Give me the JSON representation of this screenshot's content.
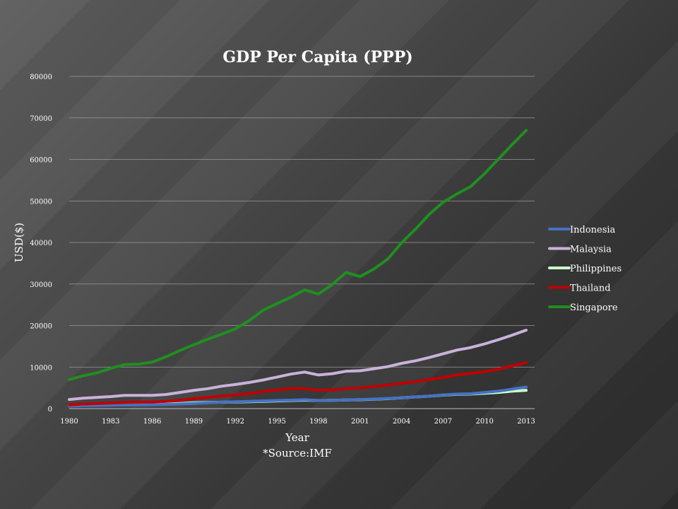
{
  "chart_data": {
    "type": "line",
    "title": "GDP Per Capita (PPP)",
    "xlabel": "Year",
    "ylabel": "USD($)",
    "source": "*Source:IMF",
    "x": [
      1980,
      1981,
      1982,
      1983,
      1984,
      1985,
      1986,
      1987,
      1988,
      1989,
      1990,
      1991,
      1992,
      1993,
      1994,
      1995,
      1996,
      1997,
      1998,
      1999,
      2000,
      2001,
      2002,
      2003,
      2004,
      2005,
      2006,
      2007,
      2008,
      2009,
      2010,
      2011,
      2012,
      2013
    ],
    "x_ticks": [
      "1980",
      "1983",
      "1986",
      "1989",
      "1992",
      "1995",
      "1998",
      "2001",
      "2004",
      "2007",
      "2010",
      "2013"
    ],
    "y_ticks": [
      "0",
      "10000",
      "20000",
      "30000",
      "40000",
      "50000",
      "60000",
      "70000",
      "80000"
    ],
    "ylim": [
      0,
      80000
    ],
    "grid": true,
    "legend_position": "right",
    "series": [
      {
        "name": "Indonesia",
        "color": "#4472c4",
        "values": [
          600,
          700,
          750,
          800,
          850,
          900,
          950,
          1000,
          1100,
          1250,
          1400,
          1550,
          1650,
          1750,
          1850,
          1950,
          2050,
          2150,
          1950,
          2000,
          2100,
          2200,
          2300,
          2450,
          2600,
          2800,
          3000,
          3300,
          3500,
          3600,
          3900,
          4200,
          4700,
          5200
        ]
      },
      {
        "name": "Malaysia",
        "color": "#c9b3d9",
        "values": [
          2200,
          2500,
          2700,
          2900,
          3200,
          3200,
          3200,
          3400,
          3900,
          4400,
          4800,
          5400,
          5800,
          6300,
          6900,
          7600,
          8300,
          8800,
          8100,
          8400,
          9000,
          9100,
          9600,
          10100,
          10900,
          11500,
          12300,
          13200,
          14100,
          14700,
          15600,
          16600,
          17700,
          18900
        ]
      },
      {
        "name": "Philippines",
        "color": "#ccffcc",
        "values": [
          800,
          900,
          1000,
          1050,
          1000,
          1000,
          1050,
          1100,
          1250,
          1400,
          1500,
          1550,
          1600,
          1650,
          1750,
          1850,
          1950,
          2050,
          1950,
          2000,
          2100,
          2150,
          2250,
          2400,
          2600,
          2800,
          3000,
          3250,
          3450,
          3500,
          3700,
          3900,
          4200,
          4400
        ]
      },
      {
        "name": "Thailand",
        "color": "#c00000",
        "values": [
          900,
          1100,
          1250,
          1350,
          1500,
          1550,
          1600,
          1750,
          2000,
          2400,
          2700,
          3000,
          3300,
          3600,
          4100,
          4500,
          4800,
          4800,
          4400,
          4500,
          4800,
          5000,
          5300,
          5700,
          6100,
          6500,
          7000,
          7500,
          8100,
          8500,
          8900,
          9500,
          10300,
          11100
        ]
      },
      {
        "name": "Singapore",
        "color": "#1f8f1f",
        "values": [
          7000,
          7900,
          8600,
          9700,
          10600,
          10700,
          11200,
          12500,
          14000,
          15400,
          16700,
          17900,
          19200,
          21200,
          23700,
          25300,
          26800,
          28600,
          27600,
          29900,
          32800,
          31800,
          33600,
          36000,
          39900,
          43200,
          46800,
          49700,
          51700,
          53500,
          56600,
          60100,
          63600,
          67000
        ]
      }
    ]
  }
}
